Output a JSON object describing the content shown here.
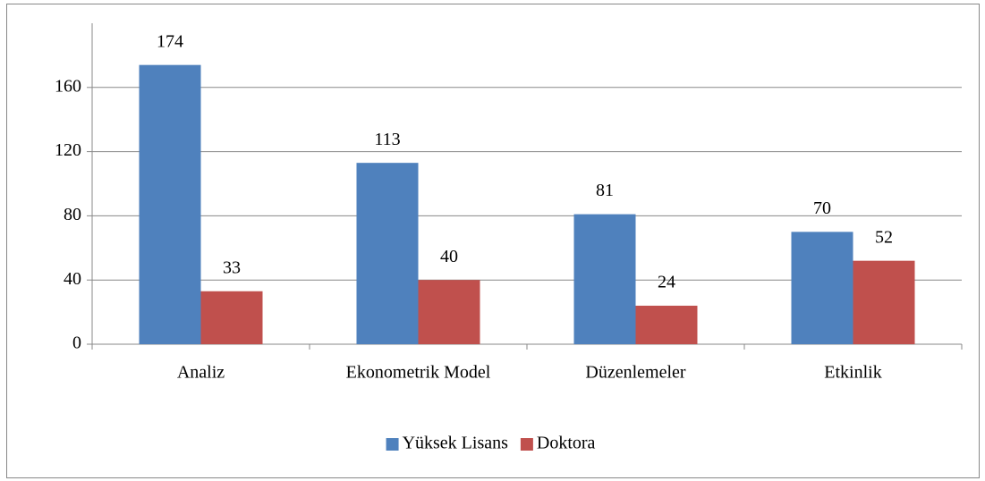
{
  "chart_data": {
    "type": "bar",
    "categories": [
      "Analiz",
      "Ekonometrik Model",
      "Düzenlemeler",
      "Etkinlik"
    ],
    "series": [
      {
        "name": "Yüksek Lisans",
        "color": "#4f81bd",
        "values": [
          174,
          113,
          81,
          70
        ]
      },
      {
        "name": "Doktora",
        "color": "#c0504d",
        "values": [
          33,
          40,
          24,
          52
        ]
      }
    ],
    "ylim": [
      0,
      200
    ],
    "yticks": [
      0,
      40,
      80,
      120,
      160
    ],
    "grid": true,
    "legend": "bottom"
  }
}
